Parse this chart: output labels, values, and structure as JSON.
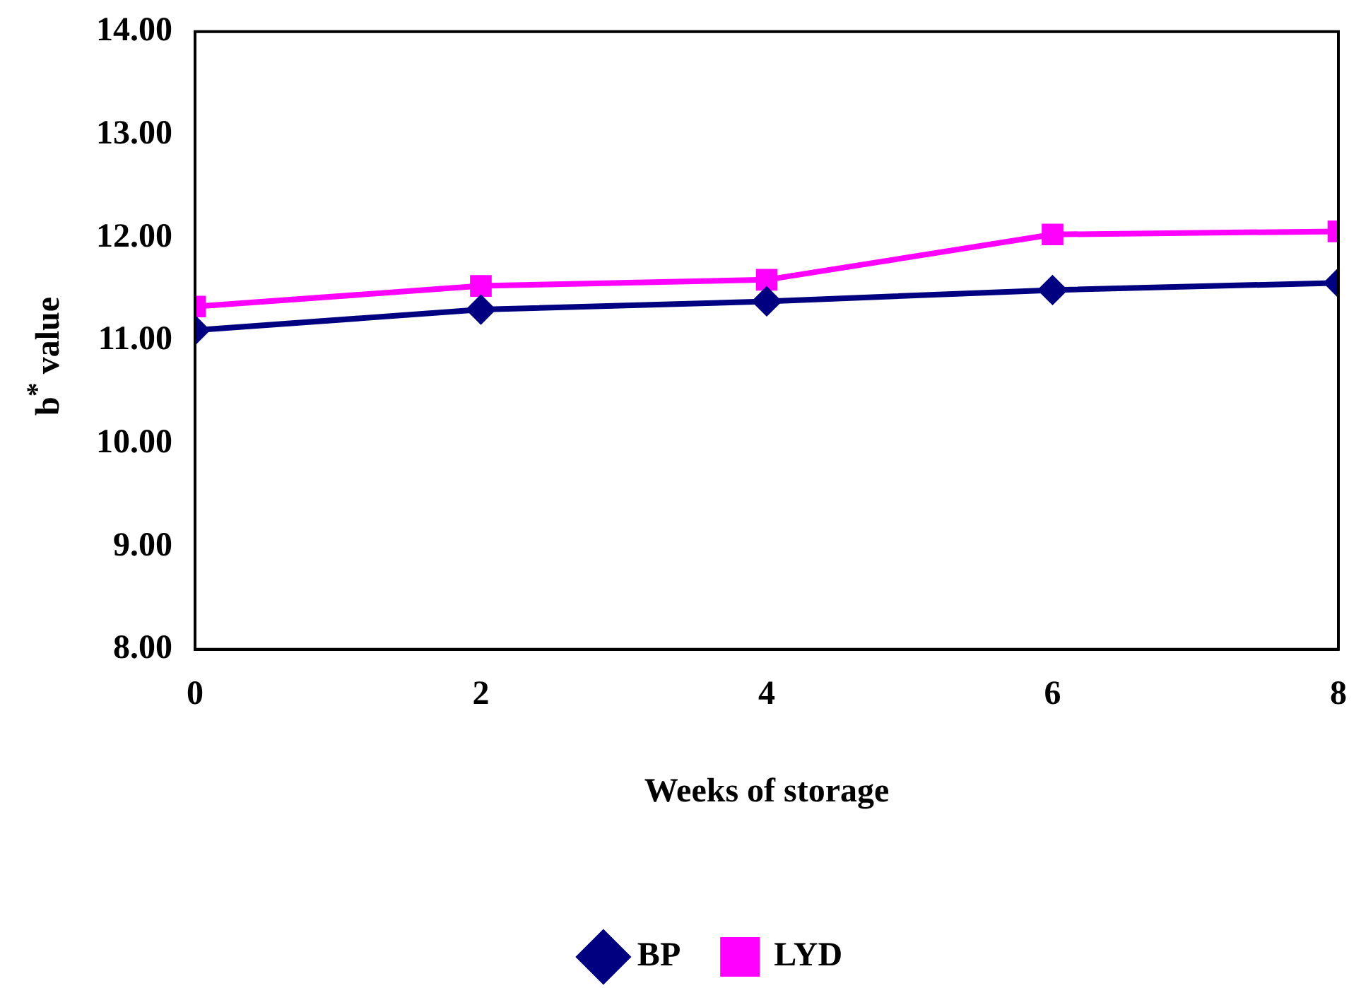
{
  "chart_data": {
    "type": "line",
    "xlabel": "Weeks of storage",
    "ylabel": "b$^{*}$ value",
    "x": [
      0,
      2,
      4,
      6,
      8
    ],
    "series": [
      {
        "name": "BP",
        "color": "#000080",
        "values": [
          11.1,
          11.3,
          11.38,
          11.49,
          11.56
        ],
        "marker": "diamond"
      },
      {
        "name": "LYD",
        "color": "#ff00ff",
        "values": [
          11.33,
          11.53,
          11.59,
          12.03,
          12.06
        ],
        "marker": "square"
      }
    ],
    "xlim": [
      0,
      8
    ],
    "xticks": [
      0,
      2,
      4,
      6,
      8
    ],
    "ylim": [
      8,
      14
    ],
    "yticks": [
      {
        "value": 8,
        "label": "8.00"
      },
      {
        "value": 9,
        "label": "9.00"
      },
      {
        "value": 10,
        "label": "10.00"
      },
      {
        "value": 11,
        "label": "11.00"
      },
      {
        "value": 12,
        "label": "12.00"
      },
      {
        "value": 13,
        "label": "13.00"
      },
      {
        "value": 14,
        "label": "14.00"
      }
    ],
    "grid": false,
    "legend": "bottom",
    "line_style": "solid"
  }
}
